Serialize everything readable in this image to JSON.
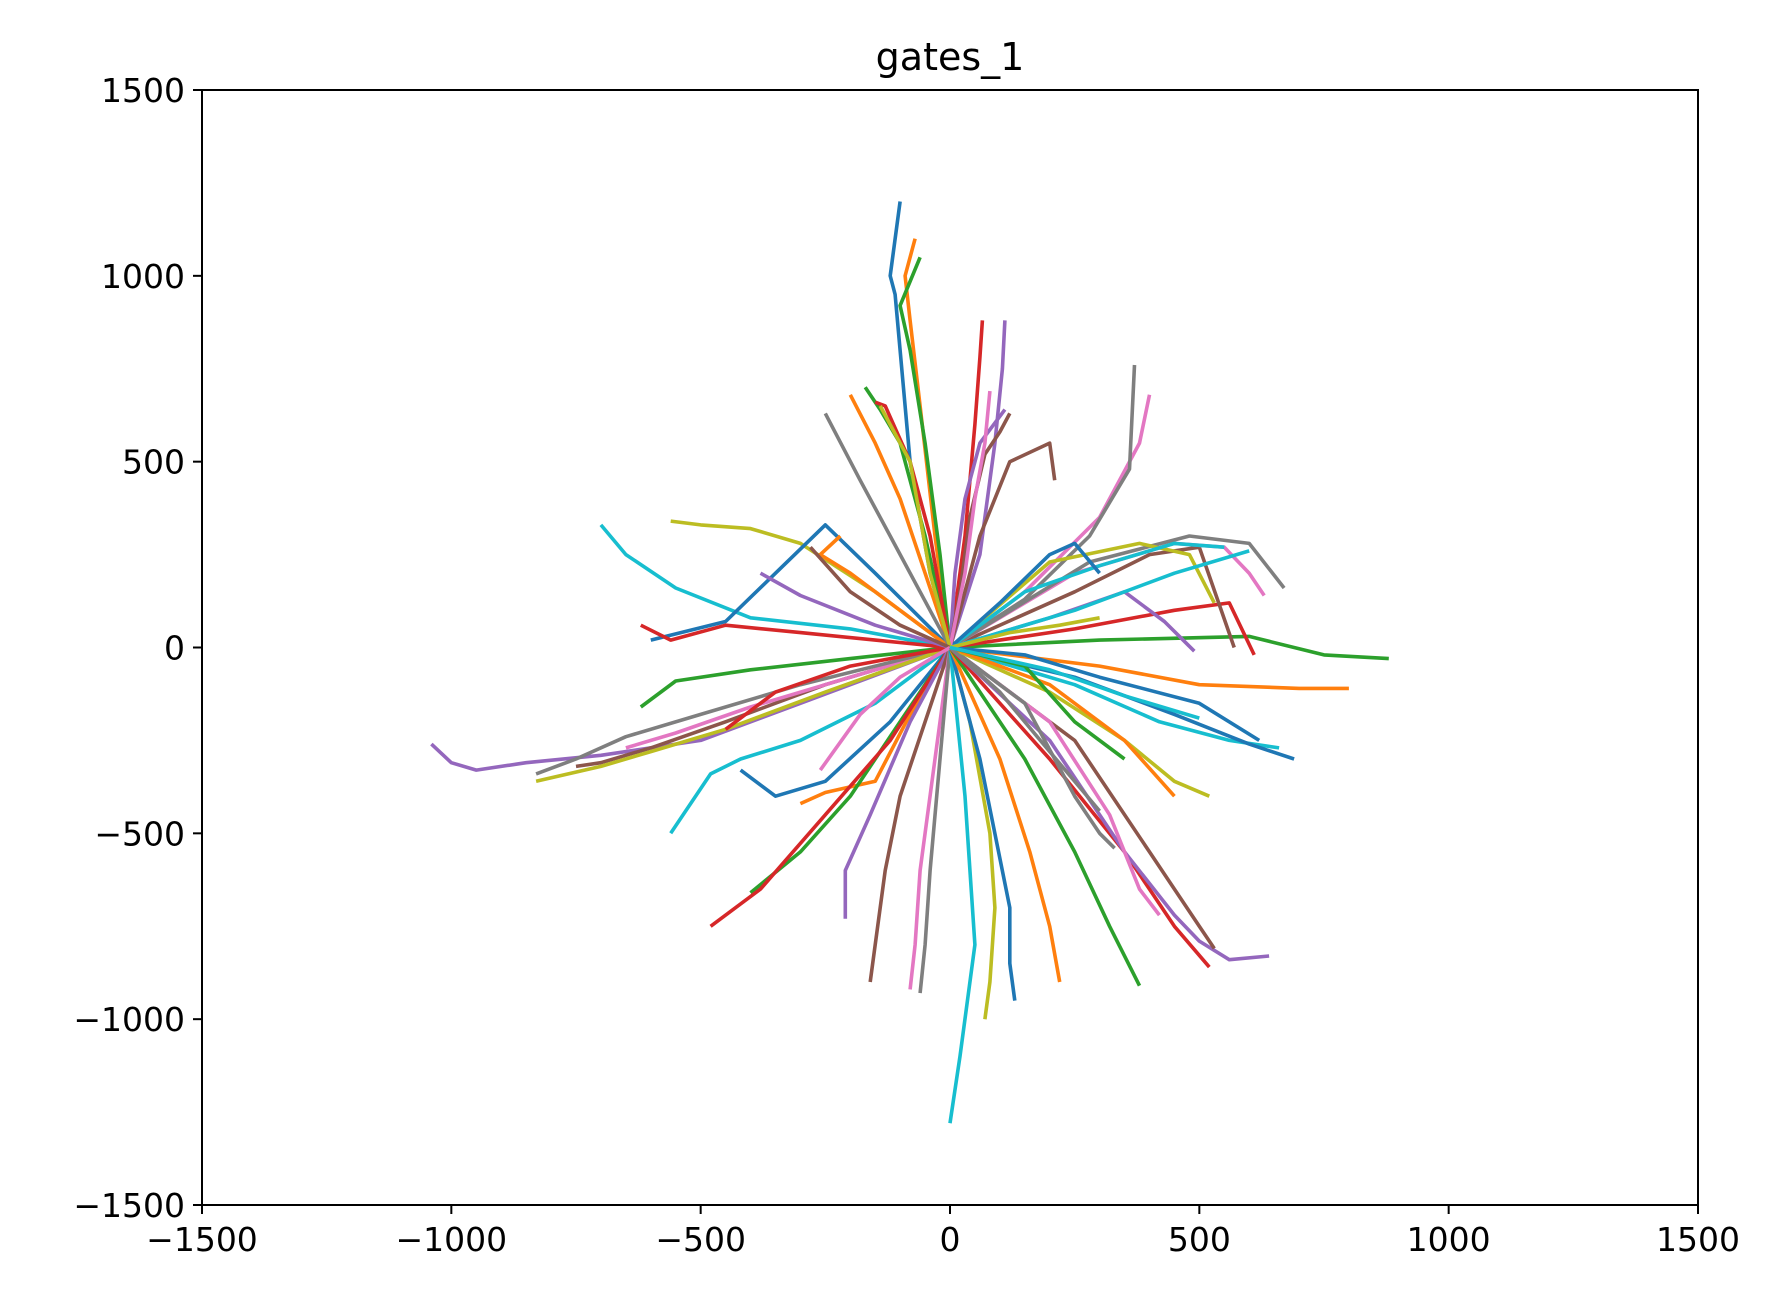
{
  "chart_data": {
    "type": "line",
    "title": "gates_1",
    "xlabel": "",
    "ylabel": "",
    "xlim": [
      -1500,
      1500
    ],
    "ylim": [
      -1500,
      1500
    ],
    "xticks": [
      -1500,
      -1000,
      -500,
      0,
      500,
      1000,
      1500
    ],
    "yticks": [
      -1500,
      -1000,
      -500,
      0,
      500,
      1000,
      1500
    ],
    "tick_labels_x": [
      "−1500",
      "−1000",
      "−500",
      "0",
      "500",
      "1000",
      "1500"
    ],
    "tick_labels_y": [
      "−1500",
      "−1000",
      "−500",
      "0",
      "500",
      "1000",
      "1500"
    ],
    "grid": false,
    "legend": "none",
    "palette": [
      "#1f77b4",
      "#ff7f0e",
      "#2ca02c",
      "#d62728",
      "#9467bd",
      "#8c564b",
      "#e377c2",
      "#7f7f7f",
      "#bcbd22",
      "#17becf"
    ],
    "series": [
      {
        "x": [
          0,
          -40,
          -80,
          -100,
          -110,
          -120,
          -100
        ],
        "y": [
          0,
          200,
          500,
          800,
          950,
          1000,
          1200
        ]
      },
      {
        "x": [
          0,
          -30,
          -60,
          -80,
          -90,
          -70
        ],
        "y": [
          0,
          300,
          650,
          880,
          1000,
          1100
        ]
      },
      {
        "x": [
          0,
          -20,
          -50,
          -80,
          -100,
          -60
        ],
        "y": [
          0,
          250,
          550,
          800,
          920,
          1050
        ]
      },
      {
        "x": [
          0,
          30,
          50,
          60,
          65
        ],
        "y": [
          0,
          300,
          600,
          780,
          880
        ]
      },
      {
        "x": [
          0,
          60,
          90,
          105,
          110
        ],
        "y": [
          0,
          250,
          550,
          750,
          880
        ]
      },
      {
        "x": [
          0,
          60,
          120,
          200,
          210
        ],
        "y": [
          0,
          300,
          500,
          550,
          450
        ]
      },
      {
        "x": [
          0,
          150,
          300,
          380,
          400
        ],
        "y": [
          0,
          150,
          350,
          550,
          680
        ]
      },
      {
        "x": [
          0,
          150,
          280,
          360,
          370
        ],
        "y": [
          0,
          130,
          300,
          480,
          760
        ]
      },
      {
        "x": [
          0,
          -150,
          -300,
          -400,
          -500,
          -560
        ],
        "y": [
          0,
          150,
          280,
          320,
          330,
          340
        ]
      },
      {
        "x": [
          0,
          -200,
          -400,
          -550,
          -650,
          -700
        ],
        "y": [
          0,
          50,
          80,
          160,
          250,
          330
        ]
      },
      {
        "x": [
          0,
          -150,
          -250,
          -350,
          -450,
          -600
        ],
        "y": [
          0,
          200,
          330,
          200,
          70,
          20
        ]
      },
      {
        "x": [
          0,
          -100,
          -200,
          -260,
          -220
        ],
        "y": [
          0,
          100,
          200,
          250,
          300
        ]
      },
      {
        "x": [
          0,
          -200,
          -400,
          -550,
          -620
        ],
        "y": [
          0,
          -30,
          -60,
          -90,
          -160
        ]
      },
      {
        "x": [
          0,
          -150,
          -300,
          -450,
          -560,
          -620
        ],
        "y": [
          0,
          20,
          40,
          60,
          20,
          60
        ]
      },
      {
        "x": [
          0,
          -300,
          -500,
          -700,
          -850,
          -950,
          -1000,
          -1040
        ],
        "y": [
          0,
          -150,
          -250,
          -290,
          -310,
          -330,
          -310,
          -260
        ]
      },
      {
        "x": [
          0,
          -250,
          -450,
          -600,
          -700,
          -750
        ],
        "y": [
          0,
          -100,
          -200,
          -270,
          -310,
          -320
        ]
      },
      {
        "x": [
          0,
          -200,
          -400,
          -550,
          -650
        ],
        "y": [
          0,
          -80,
          -160,
          -230,
          -270
        ]
      },
      {
        "x": [
          0,
          -300,
          -500,
          -650,
          -750,
          -830
        ],
        "y": [
          0,
          -100,
          -180,
          -240,
          -300,
          -340
        ]
      },
      {
        "x": [
          0,
          -250,
          -450,
          -600,
          -700,
          -830
        ],
        "y": [
          0,
          -120,
          -220,
          -280,
          -320,
          -360
        ]
      },
      {
        "x": [
          0,
          -150,
          -300,
          -420,
          -480,
          -560
        ],
        "y": [
          0,
          -150,
          -250,
          -300,
          -340,
          -500
        ]
      },
      {
        "x": [
          0,
          -120,
          -250,
          -350,
          -420
        ],
        "y": [
          0,
          -200,
          -360,
          -400,
          -330
        ]
      },
      {
        "x": [
          0,
          -80,
          -150,
          -250,
          -300
        ],
        "y": [
          0,
          -180,
          -360,
          -390,
          -420
        ]
      },
      {
        "x": [
          0,
          -100,
          -200,
          -300,
          -400
        ],
        "y": [
          0,
          -200,
          -400,
          -550,
          -660
        ]
      },
      {
        "x": [
          0,
          -120,
          -250,
          -380,
          -480
        ],
        "y": [
          0,
          -250,
          -450,
          -650,
          -750
        ]
      },
      {
        "x": [
          0,
          -80,
          -160,
          -210,
          -210
        ],
        "y": [
          0,
          -200,
          -450,
          -600,
          -730
        ]
      },
      {
        "x": [
          0,
          -50,
          -100,
          -130,
          -150,
          -160
        ],
        "y": [
          0,
          -200,
          -400,
          -600,
          -800,
          -900
        ]
      },
      {
        "x": [
          0,
          -30,
          -60,
          -70,
          -80
        ],
        "y": [
          0,
          -300,
          -600,
          -800,
          -920
        ]
      },
      {
        "x": [
          0,
          -20,
          -40,
          -50,
          -60
        ],
        "y": [
          0,
          -300,
          -600,
          -800,
          -930
        ]
      },
      {
        "x": [
          0,
          40,
          80,
          90,
          80,
          70
        ],
        "y": [
          0,
          -200,
          -500,
          -700,
          -900,
          -1000
        ]
      },
      {
        "x": [
          0,
          30,
          50,
          20,
          0
        ],
        "y": [
          0,
          -400,
          -800,
          -1100,
          -1280
        ]
      },
      {
        "x": [
          0,
          60,
          120,
          120,
          130
        ],
        "y": [
          0,
          -300,
          -700,
          -850,
          -950
        ]
      },
      {
        "x": [
          0,
          100,
          160,
          200,
          220
        ],
        "y": [
          0,
          -300,
          -550,
          -750,
          -900
        ]
      },
      {
        "x": [
          0,
          150,
          250,
          320,
          380
        ],
        "y": [
          0,
          -300,
          -550,
          -750,
          -910
        ]
      },
      {
        "x": [
          0,
          200,
          350,
          450,
          520
        ],
        "y": [
          0,
          -300,
          -550,
          -750,
          -860
        ]
      },
      {
        "x": [
          0,
          200,
          350,
          450,
          500,
          560,
          640
        ],
        "y": [
          0,
          -250,
          -550,
          -720,
          -790,
          -840,
          -830
        ]
      },
      {
        "x": [
          0,
          250,
          400,
          500,
          530
        ],
        "y": [
          0,
          -250,
          -550,
          -750,
          -810
        ]
      },
      {
        "x": [
          0,
          200,
          320,
          380,
          420
        ],
        "y": [
          0,
          -200,
          -450,
          -650,
          -720
        ]
      },
      {
        "x": [
          0,
          150,
          250,
          300,
          330
        ],
        "y": [
          0,
          -150,
          -400,
          -500,
          -540
        ]
      },
      {
        "x": [
          0,
          200,
          350,
          450,
          520
        ],
        "y": [
          0,
          -120,
          -250,
          -360,
          -400
        ]
      },
      {
        "x": [
          0,
          250,
          420,
          560,
          660
        ],
        "y": [
          0,
          -100,
          -200,
          -250,
          -270
        ]
      },
      {
        "x": [
          0,
          250,
          450,
          600,
          690
        ],
        "y": [
          0,
          -80,
          -180,
          -260,
          -300
        ]
      },
      {
        "x": [
          0,
          300,
          500,
          700,
          800
        ],
        "y": [
          0,
          -50,
          -100,
          -110,
          -110
        ]
      },
      {
        "x": [
          0,
          300,
          600,
          750,
          880
        ],
        "y": [
          0,
          20,
          30,
          -20,
          -30
        ]
      },
      {
        "x": [
          0,
          250,
          450,
          560,
          610
        ],
        "y": [
          0,
          50,
          100,
          120,
          -20
        ]
      },
      {
        "x": [
          0,
          200,
          350,
          430,
          490
        ],
        "y": [
          0,
          80,
          150,
          70,
          -10
        ]
      },
      {
        "x": [
          0,
          250,
          400,
          500,
          570
        ],
        "y": [
          0,
          150,
          250,
          270,
          0
        ]
      },
      {
        "x": [
          0,
          250,
          450,
          550,
          600,
          630
        ],
        "y": [
          0,
          200,
          280,
          270,
          200,
          140
        ]
      },
      {
        "x": [
          0,
          280,
          480,
          600,
          670
        ],
        "y": [
          0,
          230,
          300,
          280,
          160
        ]
      },
      {
        "x": [
          0,
          200,
          380,
          480,
          530
        ],
        "y": [
          0,
          230,
          280,
          250,
          120
        ]
      },
      {
        "x": [
          0,
          150,
          300,
          450,
          550
        ],
        "y": [
          0,
          150,
          220,
          280,
          270
        ]
      },
      {
        "x": [
          0,
          100,
          200,
          250,
          300
        ],
        "y": [
          0,
          120,
          250,
          280,
          200
        ]
      },
      {
        "x": [
          0,
          -50,
          -100,
          -150,
          -200
        ],
        "y": [
          0,
          200,
          400,
          550,
          680
        ]
      },
      {
        "x": [
          0,
          -50,
          -100,
          -140,
          -170
        ],
        "y": [
          0,
          300,
          550,
          640,
          700
        ]
      },
      {
        "x": [
          0,
          -40,
          -80,
          -130,
          -150
        ],
        "y": [
          0,
          300,
          500,
          650,
          660
        ]
      },
      {
        "x": [
          0,
          10,
          30,
          60,
          110
        ],
        "y": [
          0,
          200,
          400,
          550,
          640
        ]
      },
      {
        "x": [
          0,
          20,
          40,
          70,
          100,
          120
        ],
        "y": [
          0,
          150,
          350,
          520,
          580,
          630
        ]
      },
      {
        "x": [
          0,
          30,
          50,
          70,
          80
        ],
        "y": [
          0,
          200,
          400,
          550,
          690
        ]
      },
      {
        "x": [
          0,
          -60,
          -120,
          -180,
          -250
        ],
        "y": [
          0,
          150,
          300,
          450,
          630
        ]
      },
      {
        "x": [
          0,
          -40,
          -80,
          -140
        ],
        "y": [
          0,
          200,
          500,
          650
        ]
      },
      {
        "x": [
          0,
          250,
          450,
          600
        ],
        "y": [
          0,
          100,
          200,
          260
        ]
      },
      {
        "x": [
          0,
          150,
          300,
          500,
          620
        ],
        "y": [
          0,
          -20,
          -80,
          -150,
          -250
        ]
      },
      {
        "x": [
          0,
          200,
          350,
          450
        ],
        "y": [
          0,
          -100,
          -250,
          -400
        ]
      },
      {
        "x": [
          0,
          150,
          250,
          350
        ],
        "y": [
          0,
          -50,
          -200,
          -300
        ]
      },
      {
        "x": [
          0,
          -200,
          -350,
          -450
        ],
        "y": [
          0,
          -50,
          -120,
          -220
        ]
      },
      {
        "x": [
          0,
          -150,
          -300,
          -380
        ],
        "y": [
          0,
          60,
          140,
          200
        ]
      },
      {
        "x": [
          0,
          -100,
          -200,
          -280
        ],
        "y": [
          0,
          60,
          150,
          270
        ]
      },
      {
        "x": [
          0,
          -100,
          -180,
          -260
        ],
        "y": [
          0,
          -80,
          -180,
          -330
        ]
      },
      {
        "x": [
          0,
          100,
          200,
          300
        ],
        "y": [
          0,
          -120,
          -280,
          -440
        ]
      },
      {
        "x": [
          0,
          120,
          220,
          300
        ],
        "y": [
          0,
          40,
          60,
          80
        ]
      },
      {
        "x": [
          0,
          200,
          350,
          500
        ],
        "y": [
          0,
          -60,
          -130,
          -190
        ]
      }
    ]
  }
}
